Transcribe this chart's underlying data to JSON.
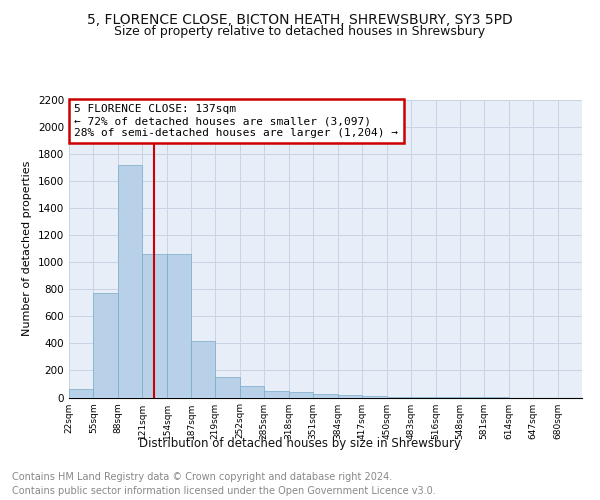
{
  "title1": "5, FLORENCE CLOSE, BICTON HEATH, SHREWSBURY, SY3 5PD",
  "title2": "Size of property relative to detached houses in Shrewsbury",
  "xlabel": "Distribution of detached houses by size in Shrewsbury",
  "ylabel": "Number of detached properties",
  "bar_values": [
    60,
    770,
    1720,
    1060,
    1060,
    415,
    150,
    85,
    50,
    40,
    25,
    15,
    10,
    5,
    3,
    2,
    1,
    1,
    0,
    0,
    0
  ],
  "bin_edges": [
    22,
    55,
    88,
    121,
    154,
    187,
    219,
    252,
    285,
    318,
    351,
    384,
    417,
    450,
    483,
    516,
    548,
    581,
    614,
    647,
    680
  ],
  "tick_labels": [
    "22sqm",
    "55sqm",
    "88sqm",
    "121sqm",
    "154sqm",
    "187sqm",
    "219sqm",
    "252sqm",
    "285sqm",
    "318sqm",
    "351sqm",
    "384sqm",
    "417sqm",
    "450sqm",
    "483sqm",
    "516sqm",
    "548sqm",
    "581sqm",
    "614sqm",
    "647sqm",
    "680sqm"
  ],
  "bar_color": "#b8d0e8",
  "bar_edge_color": "#7aaac8",
  "vline_x": 137,
  "vline_color": "#cc0000",
  "annotation_text": "5 FLORENCE CLOSE: 137sqm\n← 72% of detached houses are smaller (3,097)\n28% of semi-detached houses are larger (1,204) →",
  "annotation_box_color": "#ffffff",
  "annotation_box_edge": "#cc0000",
  "ylim": [
    0,
    2200
  ],
  "yticks": [
    0,
    200,
    400,
    600,
    800,
    1000,
    1200,
    1400,
    1600,
    1800,
    2000,
    2200
  ],
  "grid_color": "#c8d4e4",
  "bg_color": "#e8eef8",
  "footer1": "Contains HM Land Registry data © Crown copyright and database right 2024.",
  "footer2": "Contains public sector information licensed under the Open Government Licence v3.0.",
  "title_fontsize": 10,
  "subtitle_fontsize": 9,
  "footer_fontsize": 7,
  "annot_fontsize": 8,
  "ylabel_fontsize": 8,
  "xlabel_fontsize": 8.5,
  "tick_fontsize": 6.5,
  "ytick_fontsize": 7.5
}
